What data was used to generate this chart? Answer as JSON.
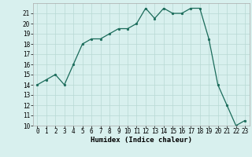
{
  "x": [
    0,
    1,
    2,
    3,
    4,
    5,
    6,
    7,
    8,
    9,
    10,
    11,
    12,
    13,
    14,
    15,
    16,
    17,
    18,
    19,
    20,
    21,
    22,
    23
  ],
  "y": [
    14,
    14.5,
    15,
    14,
    16,
    18,
    18.5,
    18.5,
    19,
    19.5,
    19.5,
    20,
    21.5,
    20.5,
    21.5,
    21,
    21,
    21.5,
    21.5,
    18.5,
    14,
    12,
    10,
    10.5
  ],
  "xlabel": "Humidex (Indice chaleur)",
  "ylim": [
    10,
    22
  ],
  "xlim": [
    -0.5,
    23.5
  ],
  "yticks": [
    10,
    11,
    12,
    13,
    14,
    15,
    16,
    17,
    18,
    19,
    20,
    21
  ],
  "xticks": [
    0,
    1,
    2,
    3,
    4,
    5,
    6,
    7,
    8,
    9,
    10,
    11,
    12,
    13,
    14,
    15,
    16,
    17,
    18,
    19,
    20,
    21,
    22,
    23
  ],
  "line_color": "#1a6b5a",
  "marker_color": "#1a6b5a",
  "bg_color": "#d8f0ee",
  "grid_color": "#b8d8d4",
  "tick_fontsize": 5.5,
  "xlabel_fontsize": 6.5
}
